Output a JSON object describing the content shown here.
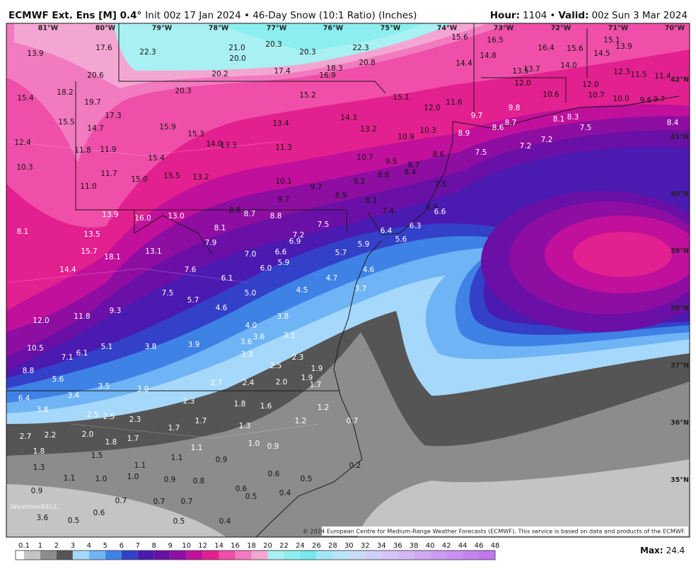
{
  "header": {
    "model": "ECMWF Ext. Ens [M] 0.4°",
    "init": "Init 00z 17 Jan 2024 • 46-Day Snow (10:1 Ratio) (Inches)",
    "hour_label": "Hour:",
    "hour": "1104",
    "separator": "•",
    "valid_label": "Valid:",
    "valid": "00z Sun 3 Mar 2024"
  },
  "map": {
    "lon_labels": [
      "81°W",
      "80°W",
      "79°W",
      "78°W",
      "77°W",
      "76°W",
      "75°W",
      "74°W",
      "73°W",
      "72°W",
      "71°W",
      "70°W"
    ],
    "lat_labels": [
      "42°N",
      "41°N",
      "40°N",
      "39°N",
      "38°N",
      "37°N",
      "36°N",
      "35°N"
    ],
    "values": [
      "13.9",
      "17.6",
      "22.3",
      "21.0",
      "20.3",
      "20.3",
      "22.3",
      "15.6",
      "16.5",
      "16.4",
      "15.6",
      "15.1",
      "13.9",
      "14.5",
      "20.0",
      "20.8",
      "14.8",
      "14.4",
      "14.0",
      "18.3",
      "17.4",
      "20.2",
      "16.9",
      "20.6",
      "13.5",
      "13.7",
      "12.3",
      "11.5",
      "11.4",
      "12.0",
      "12.0",
      "18.2",
      "15.4",
      "19.7",
      "20.3",
      "15.2",
      "15.1",
      "10.6",
      "10.7",
      "10.0",
      "9.6",
      "9.7",
      "12.0",
      "11.6",
      "9.7",
      "9.8",
      "17.3",
      "15.5",
      "14.7",
      "15.9",
      "15.3",
      "13.4",
      "14.3",
      "13.2",
      "8.6",
      "8.7",
      "8.1",
      "8.3",
      "7.5",
      "8.4",
      "8.9",
      "10.3",
      "10.9",
      "12.4",
      "14.0",
      "13.3",
      "11.8",
      "11.9",
      "15.4",
      "11.3",
      "7.2",
      "7.2",
      "7.5",
      "8.6",
      "10.7",
      "9.5",
      "8.7",
      "10.3",
      "11.7",
      "15.0",
      "15.5",
      "13.2",
      "10.1",
      "9.7",
      "8.8",
      "8.4",
      "9.2",
      "11.0",
      "7.5",
      "8.9",
      "8.1",
      "9.7",
      "8.8",
      "8.7",
      "8.8",
      "13.9",
      "16.0",
      "13.0",
      "7.4",
      "6.9",
      "6.6",
      "8.1",
      "13.5",
      "8.1",
      "7.5",
      "6.4",
      "6.3",
      "7.2",
      "6.9",
      "7.9",
      "5.9",
      "5.6",
      "15.7",
      "13.1",
      "18.1",
      "7.0",
      "6.6",
      "5.7",
      "5.9",
      "6.0",
      "14.4",
      "7.6",
      "4.6",
      "4.7",
      "6.1",
      "3.7",
      "4.5",
      "7.5",
      "5.0",
      "5.7",
      "4.6",
      "9.3",
      "3.8",
      "12.0",
      "11.8",
      "4.0",
      "3.6",
      "3.1",
      "3.6",
      "10.5",
      "5.1",
      "3.8",
      "3.9",
      "6.1",
      "7.1",
      "3.3",
      "2.3",
      "8.8",
      "2.5",
      "1.9",
      "5.6",
      "1.9",
      "2.7",
      "2.4",
      "2.0",
      "1.7",
      "3.5",
      "3.0",
      "6.4",
      "3.4",
      "2.3",
      "1.8",
      "1.6",
      "1.2",
      "3.8",
      "2.5",
      "2.5",
      "2.3",
      "1.7",
      "1.2",
      "0.7",
      "1.7",
      "1.3",
      "2.7",
      "2.2",
      "2.0",
      "1.8",
      "1.7",
      "1.0",
      "0.9",
      "1.8",
      "1.1",
      "1.5",
      "1.1",
      "0.9",
      "0.2",
      "1.3",
      "1.1",
      "0.6",
      "1.1",
      "1.0",
      "1.0",
      "0.9",
      "0.8",
      "0.5",
      "0.9",
      "0.6",
      "0.5",
      "0.4",
      "0.7",
      "0.7",
      "0.7",
      "0.6",
      "3.6",
      "0.5",
      "0.5",
      "0.4"
    ],
    "watermark": "WeatherBELL",
    "copyright": "© 2024 European Centre for Medium-Range Weather Forecasts (ECMWF). This service is based on data and products of the ECMWF."
  },
  "legend": {
    "ticks": [
      "0.1",
      "1",
      "2",
      "3",
      "4",
      "5",
      "6",
      "7",
      "8",
      "9",
      "10",
      "12",
      "14",
      "16",
      "18",
      "20",
      "22",
      "24",
      "26",
      "28",
      "30",
      "32",
      "34",
      "36",
      "38",
      "40",
      "42",
      "44",
      "46",
      "48"
    ],
    "colors": [
      "#ffffff",
      "#c4c4c4",
      "#8c8c8c",
      "#555555",
      "#a6d8fb",
      "#6fb4f4",
      "#3f82e6",
      "#3340c8",
      "#4b1ab0",
      "#6a10a6",
      "#8e0ea2",
      "#c0109c",
      "#e3208f",
      "#ef4fa8",
      "#f27abf",
      "#f4a6d3",
      "#a8f0f2",
      "#8ceeee",
      "#78e6ea",
      "#a0e8f4",
      "#b8e4f8",
      "#c8dcf8",
      "#d0d0f8",
      "#d4c4f8",
      "#d4b8f6",
      "#d0a8f4",
      "#cc9cf2",
      "#c890f0",
      "#c484ee",
      "#c078ec"
    ],
    "max_label": "Max:",
    "max": "24.4"
  }
}
